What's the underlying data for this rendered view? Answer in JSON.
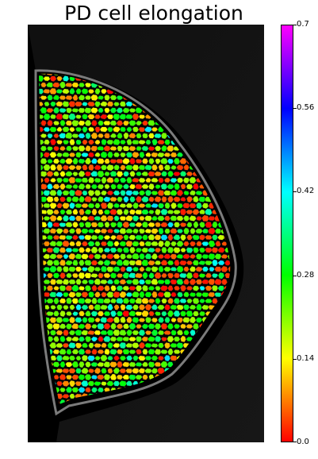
{
  "figure": {
    "title": "PD cell elongation",
    "image_description_icon": "cell-segmentation-heatmap"
  },
  "colorbar": {
    "min": 0.0,
    "max": 0.7,
    "ticks": [
      "0.0",
      "0.14",
      "0.28",
      "0.42",
      "0.56",
      "0.7"
    ],
    "tick_values": [
      0.0,
      0.14,
      0.28,
      0.42,
      0.56,
      0.7
    ],
    "colormap_stops": [
      "#ff0000",
      "#ff8000",
      "#ffff00",
      "#80ff00",
      "#00ff00",
      "#00ff80",
      "#00ffff",
      "#0080ff",
      "#0000ff",
      "#8000ff",
      "#ff00ff"
    ]
  },
  "colors": {
    "background": "#000000",
    "cell_edge": "#1a1a1a"
  }
}
